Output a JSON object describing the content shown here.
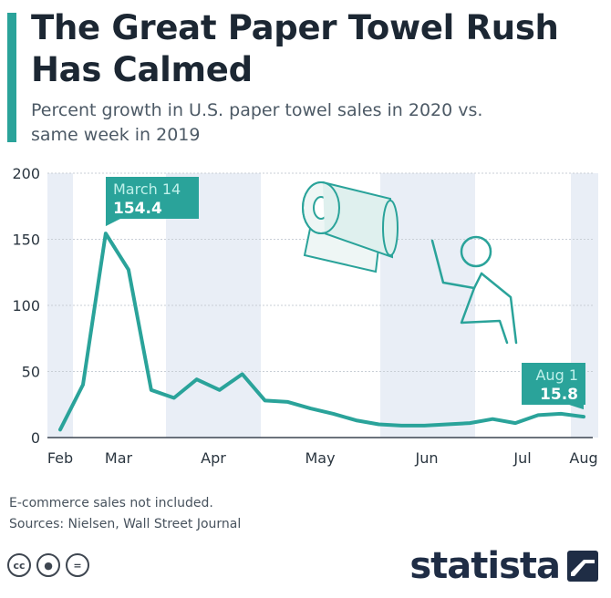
{
  "header": {
    "title": "The Great Paper Towel Rush Has Calmed",
    "subtitle": "Percent growth in U.S. paper towel sales in 2020 vs. same week in 2019"
  },
  "chart_data": {
    "type": "line",
    "ylim": [
      0,
      200
    ],
    "yticks": [
      0,
      50,
      100,
      150,
      200
    ],
    "xticks": [
      "Feb",
      "Mar",
      "Apr",
      "May",
      "Jun",
      "Jul",
      "Aug"
    ],
    "series": [
      {
        "values": [
          6,
          40,
          154.4,
          127,
          36,
          30,
          44,
          36,
          48,
          28,
          27,
          22,
          18,
          13,
          10,
          9,
          9,
          10,
          11,
          14,
          11,
          17,
          18,
          15.8
        ]
      }
    ],
    "shaded_bands": [
      "Feb",
      "Apr",
      "Jun",
      "Aug"
    ],
    "grid": true,
    "annotations": [
      {
        "label": "March 14",
        "value": "154.4",
        "index": 2
      },
      {
        "label": "Aug 1",
        "value": "15.8",
        "index": 23
      }
    ]
  },
  "footer": {
    "note": "E-commerce sales not included.",
    "sources": "Sources: Nielsen, Wall Street Journal",
    "brand": "statista"
  },
  "colors": {
    "line": "#2aa39a",
    "band": "#e9eef6",
    "annotation_bg": "#2aa39a",
    "brand": "#1f2d45"
  }
}
